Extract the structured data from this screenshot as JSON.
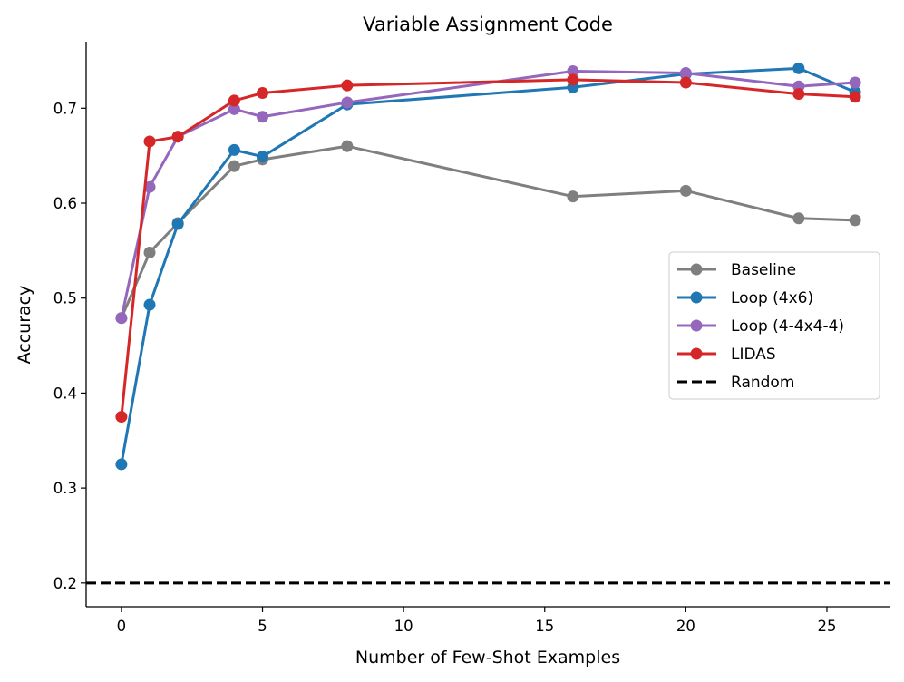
{
  "chart_data": {
    "type": "line",
    "title": "Variable Assignment Code",
    "xlabel": "Number of Few-Shot Examples",
    "ylabel": "Accuracy",
    "xlim": [
      -1.25,
      27.25
    ],
    "ylim": [
      0.175,
      0.77
    ],
    "xticks": [
      0,
      5,
      10,
      15,
      20,
      25
    ],
    "yticks": [
      0.2,
      0.3,
      0.4,
      0.5,
      0.6,
      0.7
    ],
    "xtick_labels": [
      "0",
      "5",
      "10",
      "15",
      "20",
      "25"
    ],
    "ytick_labels": [
      "0.2",
      "0.3",
      "0.4",
      "0.5",
      "0.6",
      "0.7"
    ],
    "legend_position": "center-right",
    "series": [
      {
        "name": "Baseline",
        "color": "#7f7f7f",
        "x": [
          0,
          1,
          2,
          4,
          5,
          8,
          16,
          20,
          24,
          26
        ],
        "y": [
          0.479,
          0.548,
          0.579,
          0.639,
          0.646,
          0.66,
          0.607,
          0.613,
          0.584,
          0.582
        ]
      },
      {
        "name": "Loop (4x6)",
        "color": "#1f77b4",
        "x": [
          0,
          1,
          2,
          4,
          5,
          8,
          16,
          20,
          24,
          26
        ],
        "y": [
          0.325,
          0.493,
          0.578,
          0.656,
          0.649,
          0.704,
          0.722,
          0.736,
          0.742,
          0.717
        ]
      },
      {
        "name": "Loop (4-4x4-4)",
        "color": "#9467bd",
        "x": [
          0,
          1,
          2,
          4,
          5,
          8,
          16,
          20,
          24,
          26
        ],
        "y": [
          0.479,
          0.617,
          0.67,
          0.699,
          0.691,
          0.706,
          0.739,
          0.737,
          0.723,
          0.727
        ]
      },
      {
        "name": "LIDAS",
        "color": "#d62728",
        "x": [
          0,
          1,
          2,
          4,
          5,
          8,
          16,
          20,
          24,
          26
        ],
        "y": [
          0.375,
          0.665,
          0.67,
          0.708,
          0.716,
          0.724,
          0.73,
          0.727,
          0.715,
          0.712
        ]
      }
    ],
    "reference_lines": [
      {
        "name": "Random",
        "y": 0.2,
        "color": "#000000",
        "style": "dashed"
      }
    ]
  }
}
